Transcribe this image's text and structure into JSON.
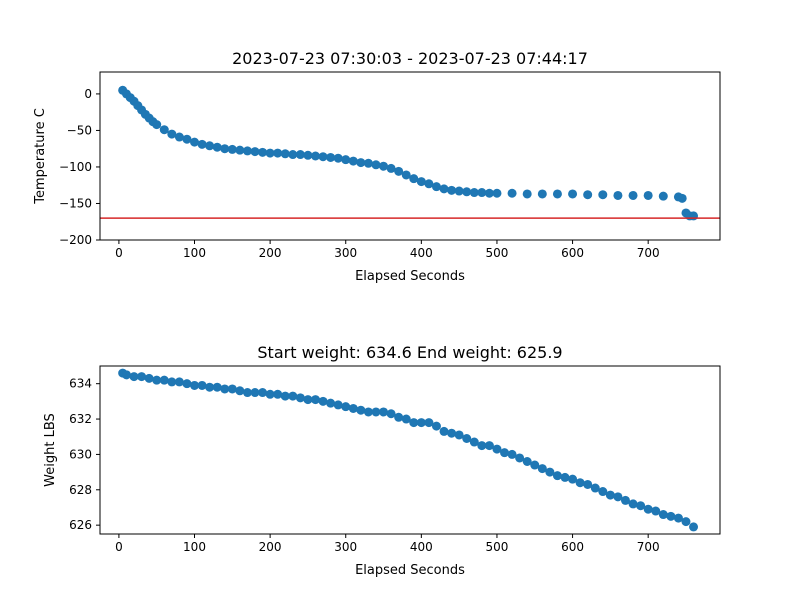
{
  "chart_data": [
    {
      "type": "scatter",
      "title": "2023-07-23 07:30:03 - 2023-07-23 07:44:17",
      "xlabel": "Elapsed Seconds",
      "ylabel": "Temperature C",
      "xlim": [
        -25,
        795
      ],
      "ylim": [
        -200,
        30
      ],
      "xticks": [
        0,
        100,
        200,
        300,
        400,
        500,
        600,
        700
      ],
      "yticks": [
        0,
        -50,
        -100,
        -150,
        -200
      ],
      "xtick_labels": [
        "0",
        "100",
        "200",
        "300",
        "400",
        "500",
        "600",
        "700"
      ],
      "ytick_labels": [
        "0",
        "−50",
        "−100",
        "−150",
        "−200"
      ],
      "grid": false,
      "marker_color": "#1f77b4",
      "reference_line": {
        "y": -170,
        "color": "#d62728"
      },
      "series": [
        {
          "x": [
            5,
            10,
            15,
            20,
            25,
            30,
            35,
            40,
            45,
            50,
            60,
            70,
            80,
            90,
            100,
            110,
            120,
            130,
            140,
            150,
            160,
            170,
            180,
            190,
            200,
            210,
            220,
            230,
            240,
            250,
            260,
            270,
            280,
            290,
            300,
            310,
            320,
            330,
            340,
            350,
            360,
            370,
            380,
            390,
            400,
            410,
            420,
            430,
            440,
            450,
            460,
            470,
            480,
            490,
            500,
            520,
            540,
            560,
            580,
            600,
            620,
            640,
            660,
            680,
            700,
            720,
            740,
            745,
            750,
            755,
            760
          ],
          "y": [
            5,
            0,
            -5,
            -10,
            -16,
            -22,
            -28,
            -33,
            -38,
            -42,
            -49,
            -55,
            -59,
            -62,
            -66,
            -69,
            -71,
            -73,
            -75,
            -76,
            -77,
            -78,
            -79,
            -80,
            -81,
            -81,
            -82,
            -83,
            -83,
            -84,
            -85,
            -86,
            -87,
            -88,
            -90,
            -92,
            -94,
            -95,
            -97,
            -99,
            -102,
            -106,
            -111,
            -116,
            -120,
            -123,
            -127,
            -130,
            -132,
            -133,
            -134,
            -135,
            -135,
            -136,
            -136,
            -136,
            -137,
            -137,
            -137,
            -137,
            -138,
            -138,
            -139,
            -139,
            -139,
            -140,
            -141,
            -143,
            -163,
            -167,
            -167
          ]
        }
      ]
    },
    {
      "type": "scatter",
      "title": "Start weight: 634.6 End weight: 625.9",
      "xlabel": "Elapsed Seconds",
      "ylabel": "Weight LBS",
      "xlim": [
        -25,
        795
      ],
      "ylim": [
        625.5,
        635.0
      ],
      "xticks": [
        0,
        100,
        200,
        300,
        400,
        500,
        600,
        700
      ],
      "yticks": [
        626,
        628,
        630,
        632,
        634
      ],
      "xtick_labels": [
        "0",
        "100",
        "200",
        "300",
        "400",
        "500",
        "600",
        "700"
      ],
      "ytick_labels": [
        "626",
        "628",
        "630",
        "632",
        "634"
      ],
      "grid": false,
      "marker_color": "#1f77b4",
      "series": [
        {
          "x": [
            5,
            10,
            20,
            30,
            40,
            50,
            60,
            70,
            80,
            90,
            100,
            110,
            120,
            130,
            140,
            150,
            160,
            170,
            180,
            190,
            200,
            210,
            220,
            230,
            240,
            250,
            260,
            270,
            280,
            290,
            300,
            310,
            320,
            330,
            340,
            350,
            360,
            370,
            380,
            390,
            400,
            410,
            420,
            430,
            440,
            450,
            460,
            470,
            480,
            490,
            500,
            510,
            520,
            530,
            540,
            550,
            560,
            570,
            580,
            590,
            600,
            610,
            620,
            630,
            640,
            650,
            660,
            670,
            680,
            690,
            700,
            710,
            720,
            730,
            740,
            750,
            760
          ],
          "y": [
            634.6,
            634.5,
            634.4,
            634.4,
            634.3,
            634.2,
            634.2,
            634.1,
            634.1,
            634.0,
            633.9,
            633.9,
            633.8,
            633.8,
            633.7,
            633.7,
            633.6,
            633.5,
            633.5,
            633.5,
            633.4,
            633.4,
            633.3,
            633.3,
            633.2,
            633.1,
            633.1,
            633.0,
            632.9,
            632.8,
            632.7,
            632.6,
            632.5,
            632.4,
            632.4,
            632.4,
            632.3,
            632.1,
            632.0,
            631.8,
            631.8,
            631.8,
            631.6,
            631.3,
            631.2,
            631.1,
            630.9,
            630.7,
            630.5,
            630.5,
            630.3,
            630.1,
            630.0,
            629.8,
            629.6,
            629.4,
            629.2,
            629.0,
            628.8,
            628.7,
            628.6,
            628.4,
            628.3,
            628.1,
            627.9,
            627.7,
            627.6,
            627.4,
            627.2,
            627.1,
            626.9,
            626.8,
            626.6,
            626.5,
            626.4,
            626.2,
            625.9
          ]
        }
      ]
    }
  ]
}
